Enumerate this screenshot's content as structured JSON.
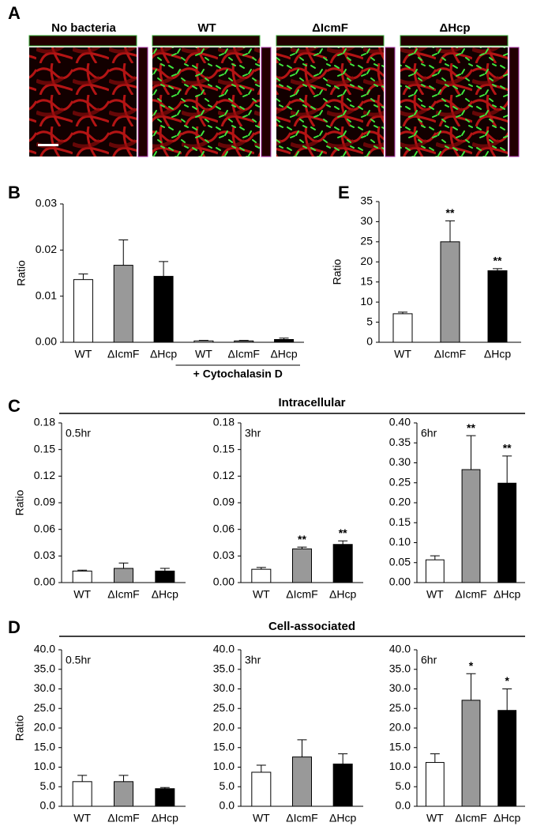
{
  "panel_a": {
    "letter": "A",
    "titles": [
      "No bacteria",
      "WT",
      "ΔIcmF",
      "ΔHcp"
    ]
  },
  "sections": [
    {
      "letter": "C",
      "title": "Intracellular"
    },
    {
      "letter": "D",
      "title": "Cell-associated"
    }
  ],
  "chart_data": [
    {
      "type": "bar",
      "panel": "B",
      "ylabel": "Ratio",
      "categories": [
        "WT",
        "ΔIcmF",
        "ΔHcp",
        "WT",
        "ΔIcmF",
        "ΔHcp"
      ],
      "values": [
        0.0136,
        0.0167,
        0.0143,
        0.0003,
        0.0003,
        0.0006
      ],
      "error": [
        0.0012,
        0.0055,
        0.0032,
        0.0001,
        0.0001,
        0.0003
      ],
      "colors": [
        "#ffffff",
        "#999999",
        "#000000",
        "#ffffff",
        "#999999",
        "#000000"
      ],
      "annotation": "+ Cytochalasin D",
      "ylim": [
        0,
        0.03
      ],
      "yticks": [
        {
          "value": 0,
          "label": "0.00"
        },
        0.01,
        0.02,
        0.03
      ]
    },
    {
      "type": "bar",
      "panel": "E",
      "ylabel": "Ratio",
      "categories": [
        "WT",
        "ΔIcmF",
        "ΔHcp"
      ],
      "values": [
        7.1,
        25.0,
        17.8
      ],
      "error": [
        0.4,
        5.2,
        0.5
      ],
      "colors": [
        "#ffffff",
        "#999999",
        "#000000"
      ],
      "significance": [
        null,
        "**",
        "**"
      ],
      "ylim": [
        0,
        35
      ],
      "yticks": [
        0,
        5,
        10,
        15,
        20,
        25,
        30,
        35
      ]
    },
    {
      "type": "bar",
      "label": "0.5hr",
      "ylabel": "Ratio",
      "categories": [
        "WT",
        "ΔIcmF",
        "ΔHcp"
      ],
      "values": [
        0.013,
        0.016,
        0.013
      ],
      "error": [
        0.001,
        0.006,
        0.003
      ],
      "colors": [
        "#ffffff",
        "#999999",
        "#000000"
      ],
      "ylim": [
        0,
        0.18
      ],
      "yticks": [
        {
          "value": 0,
          "label": "0.00"
        },
        0.03,
        0.06,
        0.09,
        0.12,
        0.15,
        0.18
      ]
    },
    {
      "type": "bar",
      "label": "3hr",
      "categories": [
        "WT",
        "ΔIcmF",
        "ΔHcp"
      ],
      "values": [
        0.015,
        0.038,
        0.043
      ],
      "error": [
        0.002,
        0.002,
        0.004
      ],
      "colors": [
        "#ffffff",
        "#999999",
        "#000000"
      ],
      "significance": [
        null,
        "**",
        "**"
      ],
      "ylim": [
        0,
        0.18
      ],
      "yticks": [
        {
          "value": 0,
          "label": "0.00"
        },
        0.03,
        0.06,
        0.09,
        0.12,
        0.15,
        0.18
      ]
    },
    {
      "type": "bar",
      "label": "6hr",
      "categories": [
        "WT",
        "ΔIcmF",
        "ΔHcp"
      ],
      "values": [
        0.057,
        0.283,
        0.249
      ],
      "error": [
        0.01,
        0.085,
        0.068
      ],
      "colors": [
        "#ffffff",
        "#999999",
        "#000000"
      ],
      "significance": [
        null,
        "**",
        "**"
      ],
      "ylim": [
        0,
        0.4
      ],
      "yticks": [
        {
          "value": 0,
          "label": "0.00"
        },
        0.05,
        {
          "value": 0.1,
          "label": "0.10"
        },
        0.15,
        {
          "value": 0.2,
          "label": "0.20"
        },
        0.25,
        {
          "value": 0.3,
          "label": "0.30"
        },
        0.35,
        {
          "value": 0.4,
          "label": "0.40"
        }
      ]
    },
    {
      "type": "bar",
      "label": "0.5hr",
      "ylabel": "Ratio",
      "categories": [
        "WT",
        "ΔIcmF",
        "ΔHcp"
      ],
      "values": [
        6.3,
        6.3,
        4.5
      ],
      "error": [
        1.6,
        1.6,
        0.3
      ],
      "colors": [
        "#ffffff",
        "#999999",
        "#000000"
      ],
      "ylim": [
        0,
        40
      ],
      "yticks": [
        {
          "value": 0,
          "label": "0.0"
        },
        {
          "value": 5,
          "label": "5.0"
        },
        {
          "value": 10,
          "label": "10.0"
        },
        {
          "value": 15,
          "label": "15.0"
        },
        {
          "value": 20,
          "label": "20.0"
        },
        {
          "value": 25,
          "label": "25.0"
        },
        {
          "value": 30,
          "label": "30.0"
        },
        {
          "value": 35,
          "label": "35.0"
        },
        {
          "value": 40,
          "label": "40.0"
        }
      ]
    },
    {
      "type": "bar",
      "label": "3hr",
      "categories": [
        "WT",
        "ΔIcmF",
        "ΔHcp"
      ],
      "values": [
        8.7,
        12.6,
        10.8
      ],
      "error": [
        1.8,
        4.4,
        2.6
      ],
      "colors": [
        "#ffffff",
        "#999999",
        "#000000"
      ],
      "ylim": [
        0,
        40
      ],
      "yticks": [
        {
          "value": 0,
          "label": "0.0"
        },
        {
          "value": 5,
          "label": "5.0"
        },
        {
          "value": 10,
          "label": "10.0"
        },
        {
          "value": 15,
          "label": "15.0"
        },
        {
          "value": 20,
          "label": "20.0"
        },
        {
          "value": 25,
          "label": "25.0"
        },
        {
          "value": 30,
          "label": "30.0"
        },
        {
          "value": 35,
          "label": "35.0"
        },
        {
          "value": 40,
          "label": "40.0"
        }
      ]
    },
    {
      "type": "bar",
      "label": "6hr",
      "categories": [
        "WT",
        "ΔIcmF",
        "ΔHcp"
      ],
      "values": [
        11.2,
        27.1,
        24.5
      ],
      "error": [
        2.2,
        6.8,
        5.5
      ],
      "colors": [
        "#ffffff",
        "#999999",
        "#000000"
      ],
      "significance": [
        null,
        "*",
        "*"
      ],
      "ylim": [
        0,
        40
      ],
      "yticks": [
        {
          "value": 0,
          "label": "0.0"
        },
        {
          "value": 5,
          "label": "5.0"
        },
        {
          "value": 10,
          "label": "10.0"
        },
        {
          "value": 15,
          "label": "15.0"
        },
        {
          "value": 20,
          "label": "20.0"
        },
        {
          "value": 25,
          "label": "25.0"
        },
        {
          "value": 30,
          "label": "30.0"
        },
        {
          "value": 35,
          "label": "35.0"
        },
        {
          "value": 40,
          "label": "40.0"
        }
      ]
    }
  ]
}
